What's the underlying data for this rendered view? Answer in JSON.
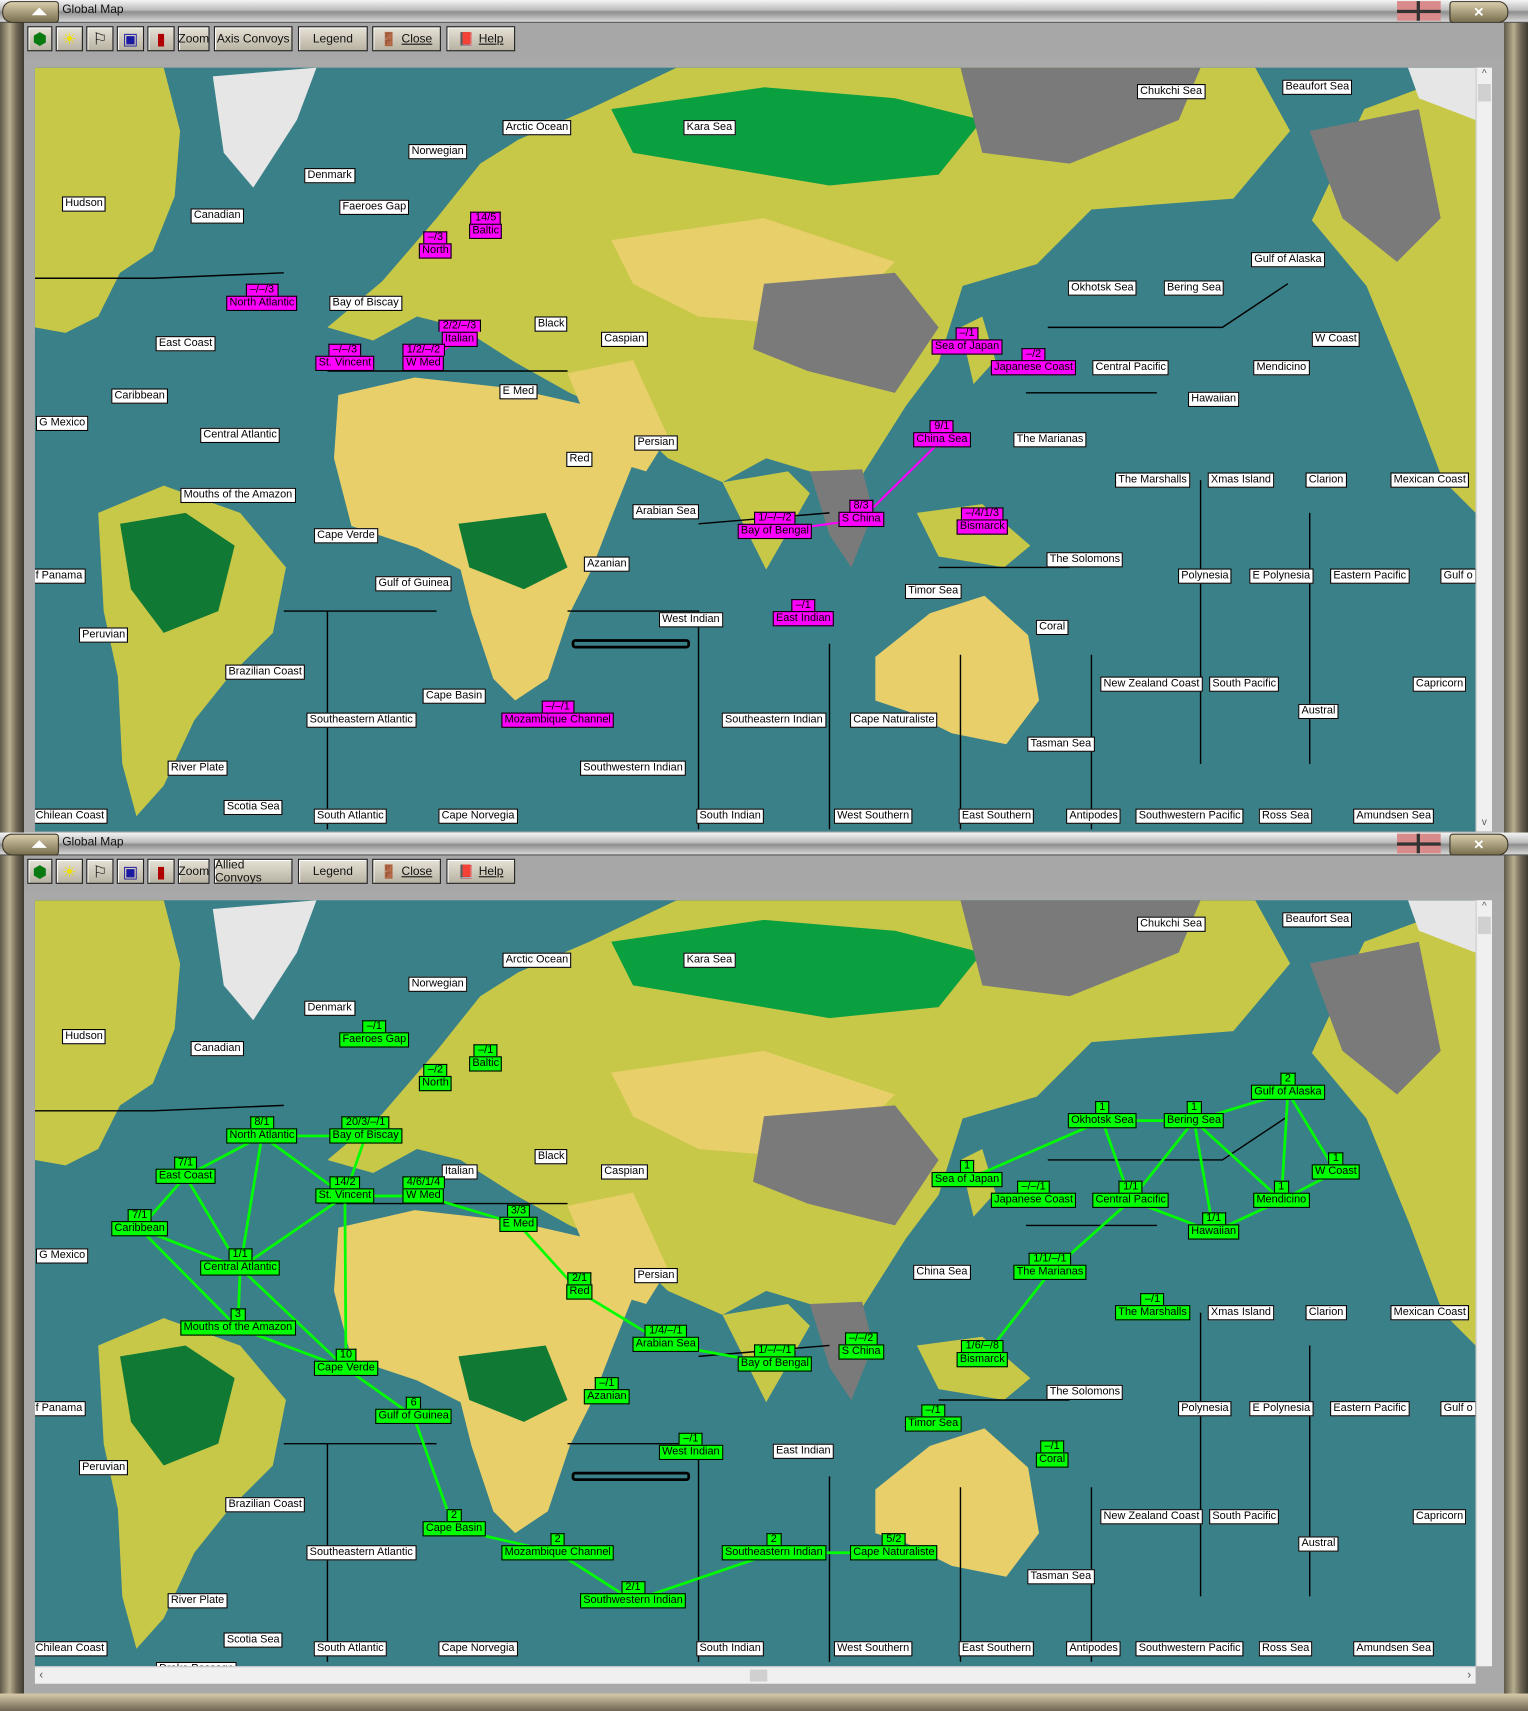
{
  "colors": {
    "ocean": "#3a8088",
    "axis_highlight": "#ff00ff",
    "allied_highlight": "#00ff00",
    "label_bg": "#ffffff"
  },
  "regions": [
    "Chukchi Sea",
    "Beaufort Sea",
    "Arctic Ocean",
    "Kara Sea",
    "Norwegian",
    "Denmark",
    "Hudson",
    "Canadian",
    "Faeroes Gap",
    "Baltic",
    "North",
    "North Atlantic",
    "Bay of Biscay",
    "Gulf of Alaska",
    "Okhotsk Sea",
    "Bering Sea",
    "Black",
    "Caspian",
    "Italian",
    "East Coast",
    "St. Vincent",
    "W Med",
    "Sea of Japan",
    "Japanese Coast",
    "Central Pacific",
    "Mendicino",
    "W Coast",
    "Caribbean",
    "E Med",
    "Hawaiian",
    "G Mexico",
    "Central Atlantic",
    "Persian",
    "The Marianas",
    "China Sea",
    "Red",
    "The Marshalls",
    "Xmas Island",
    "Clarion",
    "Mexican Coast",
    "Mouths of the Amazon",
    "Arabian Sea",
    "S China",
    "Bay of Bengal",
    "Bismarck",
    "Cape Verde",
    "Azanian",
    "The Solomons",
    "f Panama",
    "Gulf of Guinea",
    "Polynesia",
    "E Polynesia",
    "Eastern Pacific",
    "Gulf o",
    "Timor Sea",
    "West Indian",
    "East Indian",
    "Coral",
    "Peruvian",
    "Brazilian Coast",
    "New Zealand Coast",
    "South Pacific",
    "Capricorn",
    "Cape Basin",
    "Austral",
    "Southeastern Atlantic",
    "Mozambique Channel",
    "Southeastern Indian",
    "Cape Naturaliste",
    "Tasman Sea",
    "River Plate",
    "Southwestern Indian",
    "Scotia Sea",
    "Chilean Coast",
    "South Atlantic",
    "Cape Norvegia",
    "South Indian",
    "West Southern",
    "East Southern",
    "Antipodes",
    "Southwestern Pacific",
    "Ross Sea",
    "Amundsen Sea"
  ],
  "windows": [
    {
      "title": "Global Map",
      "toolbar": {
        "zoom": "Zoom",
        "convoys": "Axis Convoys",
        "legend": "Legend",
        "close": "Close",
        "help": "Help"
      },
      "icons": [
        "hexagon-icon",
        "sun-weather-icon",
        "flag-icon",
        "calculator-icon",
        "thermometer-icon"
      ],
      "highlight": "axis",
      "extra_regions": [],
      "convoys": [
        {
          "region": "Baltic",
          "count": "14/5"
        },
        {
          "region": "North",
          "count": "–/3"
        },
        {
          "region": "North Atlantic",
          "count": "–/–/3"
        },
        {
          "region": "Italian",
          "count": "2/2/–/3"
        },
        {
          "region": "St. Vincent",
          "count": "–/–/3"
        },
        {
          "region": "W Med",
          "count": "1/2/–/2"
        },
        {
          "region": "Sea of Japan",
          "count": "–/1"
        },
        {
          "region": "Japanese Coast",
          "count": "–/2"
        },
        {
          "region": "China Sea",
          "count": "9/1"
        },
        {
          "region": "S China",
          "count": "8/3"
        },
        {
          "region": "Bay of Bengal",
          "count": "1/–/–/2"
        },
        {
          "region": "Bismarck",
          "count": "–/4/1/3"
        },
        {
          "region": "East Indian",
          "count": "–/1"
        },
        {
          "region": "Mozambique Channel",
          "count": "–/–/1"
        }
      ],
      "routes": [
        [
          "China Sea",
          "S China"
        ],
        [
          "S China",
          "Bay of Bengal"
        ],
        [
          "W Med",
          "Italian"
        ]
      ]
    },
    {
      "title": "Global Map",
      "toolbar": {
        "zoom": "Zoom",
        "convoys": "Allied Convoys",
        "legend": "Legend",
        "close": "Close",
        "help": "Help"
      },
      "icons": [
        "hexagon-icon",
        "sun-weather-icon",
        "flag-icon",
        "calculator-icon",
        "thermometer-icon"
      ],
      "highlight": "allied",
      "extra_regions": [
        "Drake Passage"
      ],
      "convoys": [
        {
          "region": "Faeroes Gap",
          "count": "–/1"
        },
        {
          "region": "Baltic",
          "count": "–/1"
        },
        {
          "region": "North",
          "count": "–/2"
        },
        {
          "region": "North Atlantic",
          "count": "8/1"
        },
        {
          "region": "Bay of Biscay",
          "count": "20/3/–/1"
        },
        {
          "region": "East Coast",
          "count": "7/1"
        },
        {
          "region": "St. Vincent",
          "count": "14/2"
        },
        {
          "region": "W Med",
          "count": "4/6/1/4"
        },
        {
          "region": "Caribbean",
          "count": "7/1"
        },
        {
          "region": "E Med",
          "count": "3/3"
        },
        {
          "region": "Central Atlantic",
          "count": "1/1"
        },
        {
          "region": "Mouths of the Amazon",
          "count": "3"
        },
        {
          "region": "Cape Verde",
          "count": "10"
        },
        {
          "region": "Gulf of Guinea",
          "count": "6"
        },
        {
          "region": "Red",
          "count": "2/1"
        },
        {
          "region": "Arabian Sea",
          "count": "1/4/–/1"
        },
        {
          "region": "Bay of Bengal",
          "count": "1/–/–/1"
        },
        {
          "region": "S China",
          "count": "–/–/2"
        },
        {
          "region": "Azanian",
          "count": "–/1"
        },
        {
          "region": "West Indian",
          "count": "–/1"
        },
        {
          "region": "Cape Basin",
          "count": "2"
        },
        {
          "region": "Mozambique Channel",
          "count": "2"
        },
        {
          "region": "Southwestern Indian",
          "count": "2/1"
        },
        {
          "region": "Southeastern Indian",
          "count": "2"
        },
        {
          "region": "Cape Naturaliste",
          "count": "5/2"
        },
        {
          "region": "Sea of Japan",
          "count": "1"
        },
        {
          "region": "Japanese Coast",
          "count": "–/–/1"
        },
        {
          "region": "Okhotsk Sea",
          "count": "1"
        },
        {
          "region": "Bering Sea",
          "count": "1"
        },
        {
          "region": "Gulf of Alaska",
          "count": "2"
        },
        {
          "region": "W Coast",
          "count": "1"
        },
        {
          "region": "Central Pacific",
          "count": "1/1"
        },
        {
          "region": "Mendicino",
          "count": "1"
        },
        {
          "region": "Hawaiian",
          "count": "1/1"
        },
        {
          "region": "The Marianas",
          "count": "1/1/–/1"
        },
        {
          "region": "The Marshalls",
          "count": "–/1"
        },
        {
          "region": "Bismarck",
          "count": "1/6/–/8"
        },
        {
          "region": "Timor Sea",
          "count": "–/1"
        },
        {
          "region": "Coral",
          "count": "–/1"
        }
      ],
      "routes": [
        [
          "North Atlantic",
          "Bay of Biscay"
        ],
        [
          "North Atlantic",
          "East Coast"
        ],
        [
          "North Atlantic",
          "Central Atlantic"
        ],
        [
          "North Atlantic",
          "St. Vincent"
        ],
        [
          "Bay of Biscay",
          "St. Vincent"
        ],
        [
          "St. Vincent",
          "W Med"
        ],
        [
          "W Med",
          "E Med"
        ],
        [
          "St. Vincent",
          "Central Atlantic"
        ],
        [
          "St. Vincent",
          "Cape Verde"
        ],
        [
          "East Coast",
          "Caribbean"
        ],
        [
          "East Coast",
          "Central Atlantic"
        ],
        [
          "Caribbean",
          "Central Atlantic"
        ],
        [
          "Caribbean",
          "Mouths of the Amazon"
        ],
        [
          "Central Atlantic",
          "Mouths of the Amazon"
        ],
        [
          "Central Atlantic",
          "Cape Verde"
        ],
        [
          "Mouths of the Amazon",
          "Cape Verde"
        ],
        [
          "Cape Verde",
          "Gulf of Guinea"
        ],
        [
          "Gulf of Guinea",
          "Cape Basin"
        ],
        [
          "Cape Basin",
          "Mozambique Channel"
        ],
        [
          "Mozambique Channel",
          "Southwestern Indian"
        ],
        [
          "Southwestern Indian",
          "Southeastern Indian"
        ],
        [
          "Southeastern Indian",
          "Cape Naturaliste"
        ],
        [
          "E Med",
          "Red"
        ],
        [
          "Red",
          "Arabian Sea"
        ],
        [
          "Arabian Sea",
          "Bay of Bengal"
        ],
        [
          "Sea of Japan",
          "Okhotsk Sea"
        ],
        [
          "Okhotsk Sea",
          "Bering Sea"
        ],
        [
          "Okhotsk Sea",
          "Central Pacific"
        ],
        [
          "Bering Sea",
          "Central Pacific"
        ],
        [
          "Bering Sea",
          "Hawaiian"
        ],
        [
          "Bering Sea",
          "Mendicino"
        ],
        [
          "Bering Sea",
          "Gulf of Alaska"
        ],
        [
          "Gulf of Alaska",
          "Mendicino"
        ],
        [
          "Gulf of Alaska",
          "W Coast"
        ],
        [
          "W Coast",
          "Mendicino"
        ],
        [
          "Mendicino",
          "Hawaiian"
        ],
        [
          "Central Pacific",
          "Hawaiian"
        ],
        [
          "Central Pacific",
          "The Marianas"
        ],
        [
          "The Marianas",
          "Bismarck"
        ]
      ]
    }
  ]
}
